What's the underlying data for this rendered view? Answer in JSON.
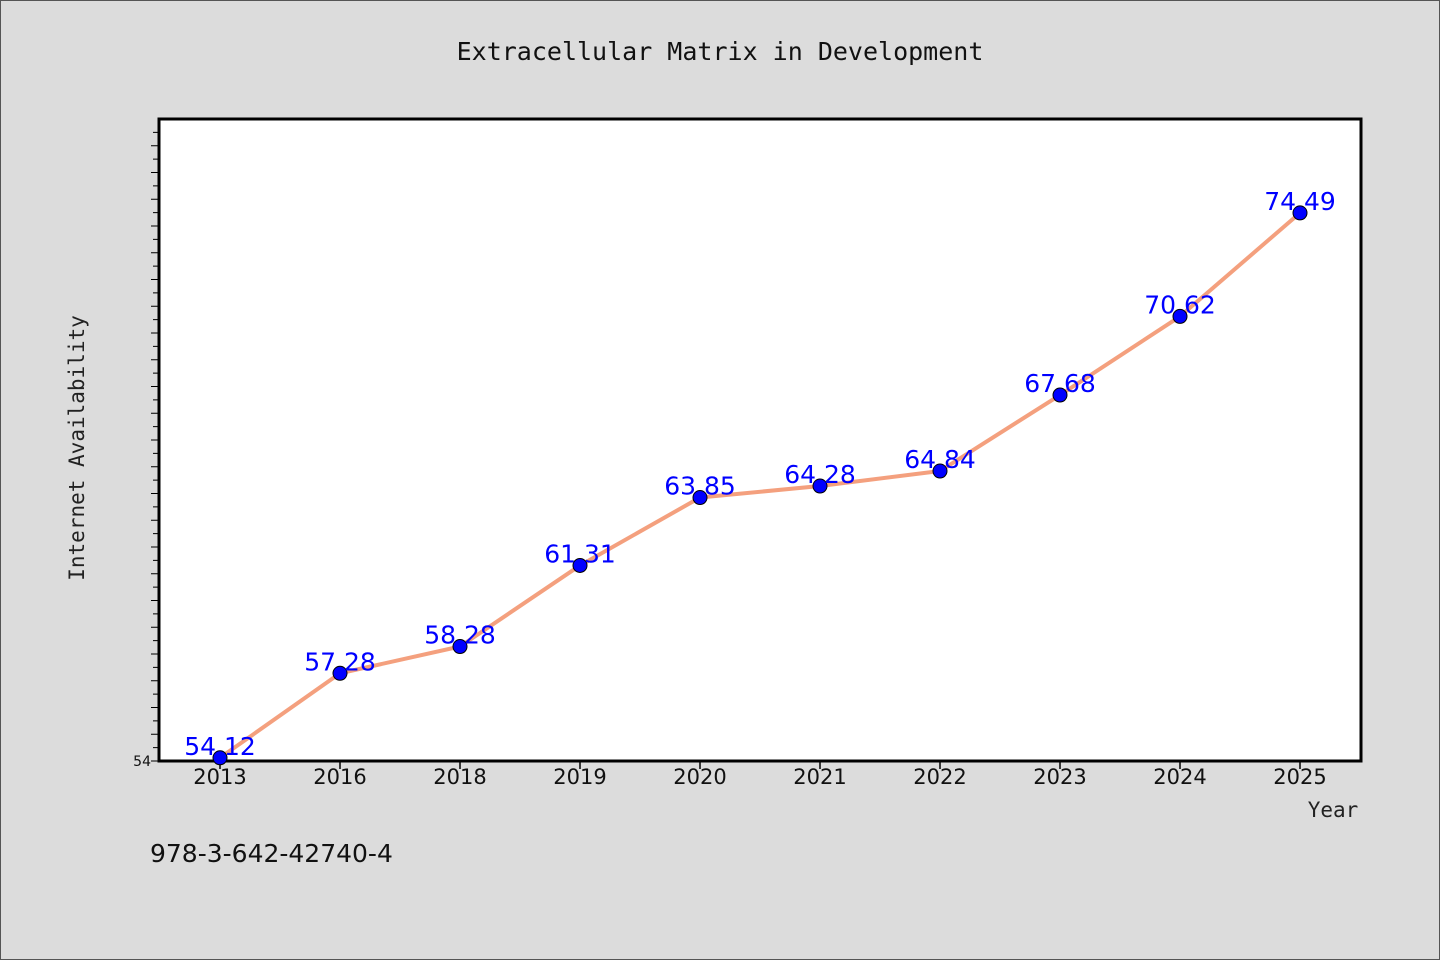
{
  "colors": {
    "background": "#dcdcdc",
    "plot_background": "#ffffff",
    "line": "#f4a07e",
    "marker": "#0000ff",
    "data_label": "#0000ff"
  },
  "footer": {
    "text": "978-3-642-42740-4"
  },
  "chart_data": {
    "type": "line",
    "title": "Extracellular Matrix in Development",
    "xlabel": "Year",
    "ylabel": "Internet Availability",
    "categories": [
      "2013",
      "2016",
      "2018",
      "2019",
      "2020",
      "2021",
      "2022",
      "2023",
      "2024",
      "2025"
    ],
    "series": [
      {
        "values": [
          54.12,
          57.28,
          58.28,
          61.31,
          63.85,
          64.28,
          64.84,
          67.68,
          70.62,
          74.49
        ],
        "labels": [
          "54.12",
          "57.28",
          "58.28",
          "61.31",
          "63.85",
          "64.28",
          "64.84",
          "67.68",
          "70.62",
          "74.49"
        ]
      }
    ],
    "ylim": [
      54,
      78
    ],
    "yticks_labeled": [
      "54"
    ],
    "grid": false,
    "legend": "none",
    "markers": true
  }
}
